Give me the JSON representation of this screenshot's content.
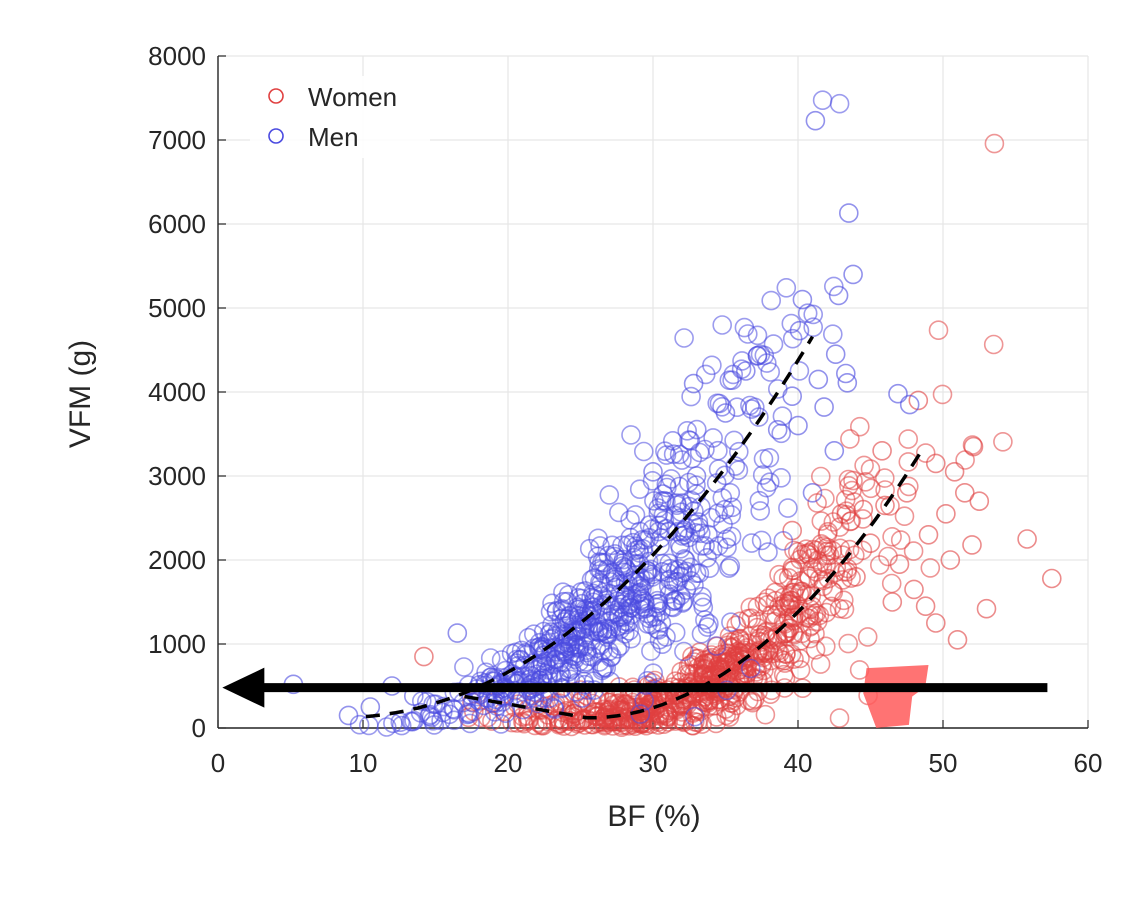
{
  "chart_data": {
    "type": "scatter",
    "xlabel": "BF (%)",
    "ylabel": "VFM (g)",
    "xlim": [
      0,
      60
    ],
    "ylim": [
      0,
      8000
    ],
    "xticks": [
      0,
      10,
      20,
      30,
      40,
      50,
      60
    ],
    "yticks": [
      0,
      1000,
      2000,
      3000,
      4000,
      5000,
      6000,
      7000,
      8000
    ],
    "grid": true,
    "legend_position": "top-left",
    "marker": "open-circle",
    "colors": {
      "women": "#e04040",
      "men": "#4a4ae0",
      "fit": "#000000",
      "arrow": "#000000",
      "highlight": "#ff5a5a"
    },
    "series": [
      {
        "name": "Women",
        "color": "#e04040",
        "cluster": {
          "x_mean": 34,
          "x_sd": 6.5,
          "count": 720,
          "fit": {
            "a": 0.00595,
            "b": 25.5,
            "c": 120
          }
        },
        "points": [
          [
            14.2,
            850
          ],
          [
            45.8,
            3300
          ],
          [
            48.3,
            3900
          ],
          [
            52.1,
            3350
          ],
          [
            49.5,
            3150
          ],
          [
            50.8,
            3050
          ],
          [
            51.5,
            2800
          ],
          [
            52.5,
            2700
          ],
          [
            50.2,
            2550
          ],
          [
            55.8,
            2250
          ],
          [
            57.5,
            1780
          ],
          [
            53.0,
            1420
          ],
          [
            52.0,
            2180
          ],
          [
            49.0,
            2300
          ],
          [
            47.5,
            2800
          ],
          [
            46.0,
            2650
          ],
          [
            44.5,
            2600
          ],
          [
            43.0,
            2550
          ],
          [
            48.0,
            1650
          ],
          [
            49.5,
            1250
          ],
          [
            51.0,
            1050
          ],
          [
            47.0,
            1950
          ],
          [
            50.5,
            2000
          ],
          [
            45.0,
            2200
          ],
          [
            39.6,
            2350
          ],
          [
            42.0,
            2150
          ],
          [
            41.0,
            1900
          ],
          [
            44.0,
            1800
          ],
          [
            46.5,
            1500
          ],
          [
            48.8,
            1450
          ]
        ]
      },
      {
        "name": "Men",
        "color": "#4a4ae0",
        "cluster": {
          "x_mean": 27,
          "x_sd": 6.0,
          "count": 650,
          "fit": {
            "a": 2.99,
            "b": 2.095,
            "c": -30
          }
        },
        "points": [
          [
            41.2,
            7230
          ],
          [
            43.5,
            6130
          ],
          [
            43.8,
            5400
          ],
          [
            42.8,
            5150
          ],
          [
            40.3,
            5100
          ],
          [
            40.1,
            4730
          ],
          [
            42.6,
            4450
          ],
          [
            43.3,
            4220
          ],
          [
            41.4,
            4150
          ],
          [
            43.4,
            4110
          ],
          [
            37.2,
            4430
          ],
          [
            36.4,
            4250
          ],
          [
            32.8,
            4100
          ],
          [
            46.9,
            3980
          ],
          [
            47.7,
            3850
          ],
          [
            40.0,
            3600
          ],
          [
            41.8,
            3820
          ],
          [
            39.6,
            3950
          ],
          [
            38.6,
            3550
          ],
          [
            35.0,
            3750
          ],
          [
            42.5,
            3300
          ],
          [
            30.0,
            3050
          ],
          [
            33.0,
            3000
          ],
          [
            41.0,
            2800
          ],
          [
            5.2,
            520
          ],
          [
            16.5,
            1130
          ],
          [
            9.0,
            150
          ],
          [
            10.5,
            250
          ],
          [
            12.0,
            500
          ],
          [
            13.5,
            380
          ]
        ]
      }
    ],
    "fit_lines": [
      {
        "series": "Women",
        "x_range": [
          17,
          48.5
        ],
        "style": "dashed"
      },
      {
        "series": "Men",
        "x_range": [
          10.2,
          41
        ],
        "style": "dashed"
      }
    ],
    "annotations": [
      {
        "type": "arrow",
        "y": 480,
        "x_from": 57.2,
        "x_to": 0.3,
        "color": "#000000"
      },
      {
        "type": "highlight",
        "x_range": [
          44.5,
          49
        ],
        "y_range": [
          0,
          750
        ],
        "color": "#ff5a5a"
      }
    ]
  }
}
